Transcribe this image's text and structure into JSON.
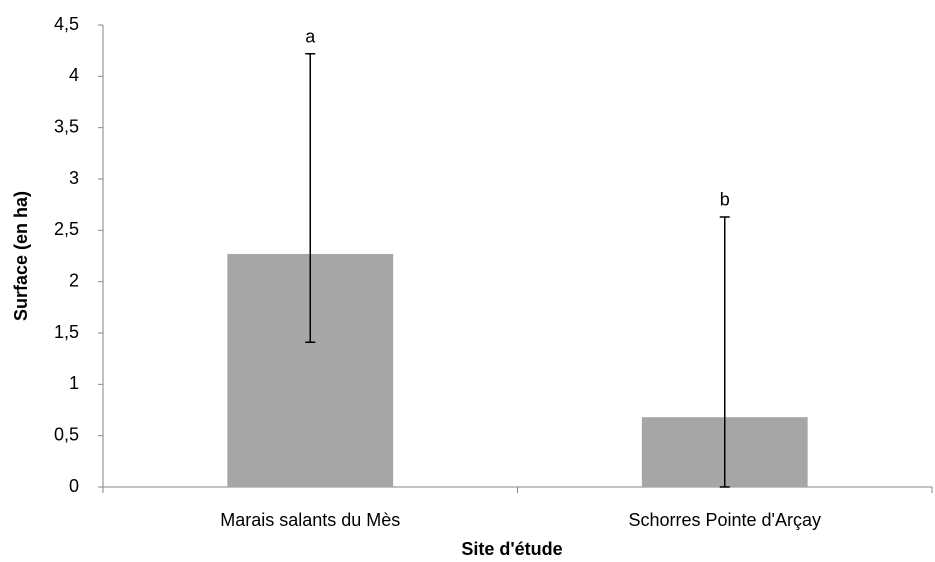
{
  "chart_data": {
    "type": "bar",
    "categories": [
      "Marais salants du Mès",
      "Schorres Pointe d'Arçay"
    ],
    "values": [
      2.27,
      0.68
    ],
    "error_plus": [
      1.95,
      1.95
    ],
    "error_minus": [
      0.86,
      0.68
    ],
    "annotations": [
      "a",
      "b"
    ],
    "color": "#a6a6a6",
    "xlabel": "Site d'étude",
    "ylabel": "Surface (en ha)",
    "ylim": [
      0,
      4.5
    ],
    "yticks": [
      0,
      {
        "value": 0.5,
        "label": "0,5"
      },
      1,
      {
        "value": 1.5,
        "label": "1,5"
      },
      2,
      {
        "value": 2.5,
        "label": "2,5"
      },
      3,
      {
        "value": 3.5,
        "label": "3,5"
      },
      4,
      {
        "value": 4.5,
        "label": "4,5"
      }
    ],
    "grid": false
  }
}
